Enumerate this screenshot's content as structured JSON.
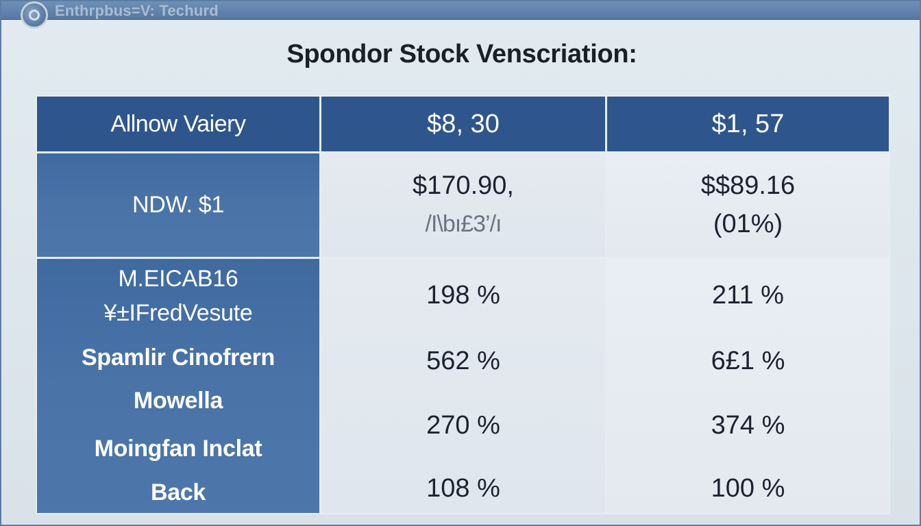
{
  "window": {
    "title": "Enthrpbus=V: Techurd"
  },
  "heading": "Spondor Stock Venscriation:",
  "table": {
    "header": [
      "Allnow Vaiery",
      "$8, 30",
      "$1, 57"
    ],
    "row1": {
      "label": "NDW. $1",
      "col1_line1": "$170.90,",
      "col1_line2": "/I\\bı£3’/ı",
      "col2_line1": "$$89.16",
      "col2_line2": "(01%)"
    },
    "row2": {
      "labels": [
        "M.EICAB16",
        "¥±IFredVesute",
        "Spamlir Cinofrern",
        "Mowella",
        "Moingfan Inclat",
        "Back"
      ],
      "col1_values": [
        "198 %",
        "562 %",
        "270 %",
        "108 %"
      ],
      "col2_values": [
        "211 %",
        "6£1 %",
        "374 %",
        "100 %"
      ]
    }
  }
}
